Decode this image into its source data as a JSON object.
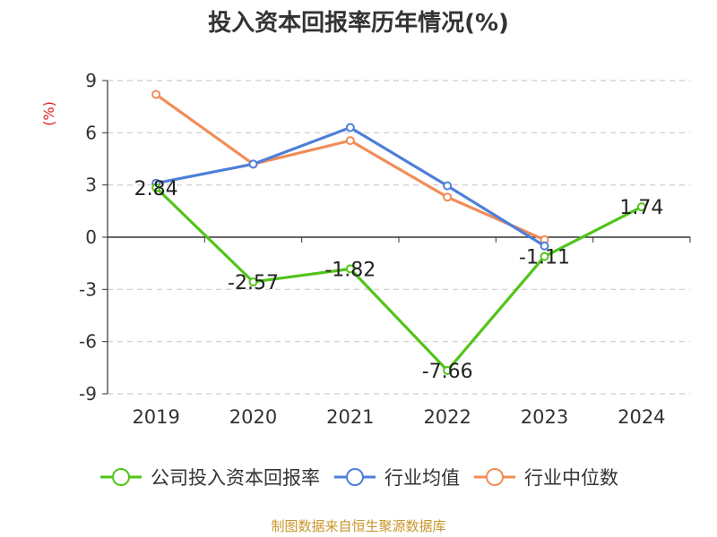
{
  "chart_data": {
    "type": "line",
    "title": "投入资本回报率历年情况(%)",
    "ylabel": "(%)",
    "xlabel": "",
    "categories": [
      "2019",
      "2020",
      "2021",
      "2022",
      "2023",
      "2024"
    ],
    "ylim": [
      -9,
      9
    ],
    "yticks": [
      9,
      6,
      3,
      0,
      -3,
      -6,
      -9
    ],
    "grid": true,
    "legend_position": "bottom",
    "series": [
      {
        "name": "公司投入资本回报率",
        "color": "#52c41a",
        "values": [
          2.84,
          -2.57,
          -1.82,
          -7.66,
          -1.11,
          1.74
        ],
        "labels": [
          "2.84",
          "-2.57",
          "-1.82",
          "-7.66",
          "-1.11",
          "1.74"
        ]
      },
      {
        "name": "行业均值",
        "color": "#4e7fd8",
        "values": [
          3.1,
          4.2,
          6.3,
          2.95,
          -0.5,
          null
        ]
      },
      {
        "name": "行业中位数",
        "color": "#f28c58",
        "values": [
          8.2,
          4.2,
          5.55,
          2.3,
          -0.15,
          null
        ]
      }
    ]
  },
  "source": "制图数据来自恒生聚源数据库"
}
